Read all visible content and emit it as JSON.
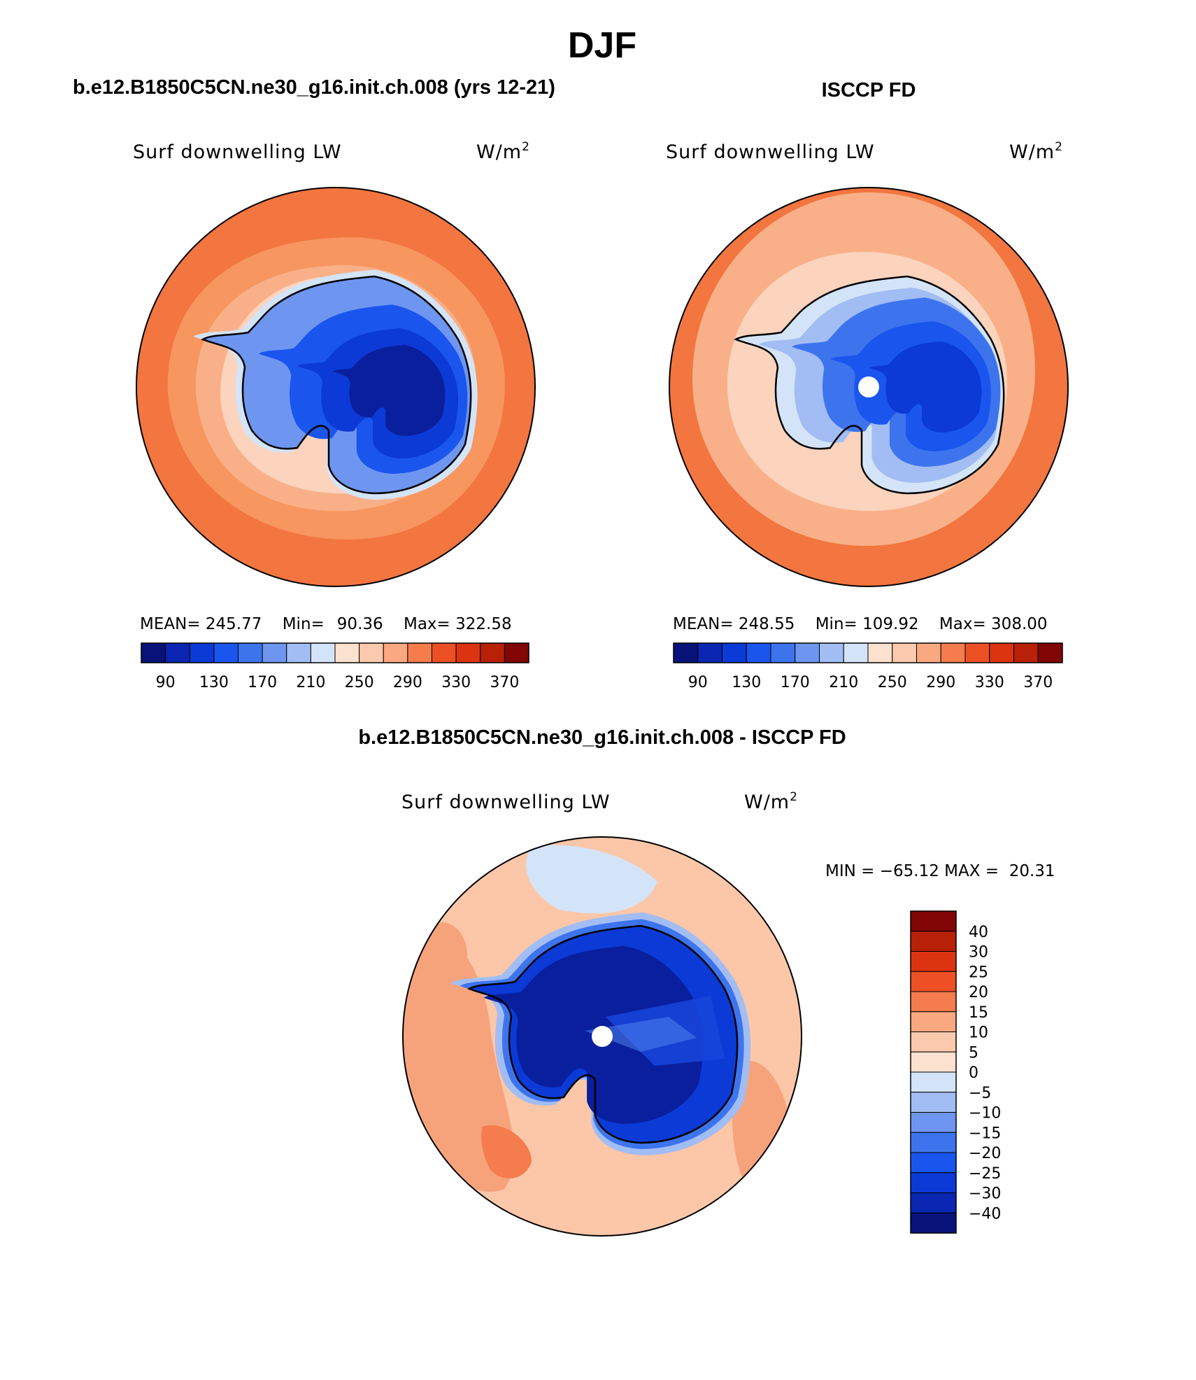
{
  "title": "DJF",
  "panels": [
    {
      "title": "b.e12.B1850C5CN.ne30_g16.init.ch.008 (yrs 12-21)",
      "field_label": "Surf downwelling LW",
      "units": "W/m",
      "units_sup": "2",
      "stats": {
        "mean_label": "MEAN=",
        "mean": "245.77",
        "min_label": "Min=",
        "min": "90.36",
        "max_label": "Max=",
        "max": "322.58"
      }
    },
    {
      "title": "ISCCP FD",
      "field_label": "Surf downwelling LW",
      "units": "W/m",
      "units_sup": "2",
      "stats": {
        "mean_label": "MEAN=",
        "mean": "248.55",
        "min_label": "Min=",
        "min": "109.92",
        "max_label": "Max=",
        "max": "308.00"
      }
    },
    {
      "title": "b.e12.B1850C5CN.ne30_g16.init.ch.008 - ISCCP FD",
      "field_label": "Surf downwelling LW",
      "units": "W/m",
      "units_sup": "2",
      "stats_text": "MIN = −65.12 MAX =  20.31"
    }
  ],
  "abs_colorbar": {
    "labels": [
      "90",
      "130",
      "170",
      "210",
      "250",
      "290",
      "330",
      "370"
    ],
    "colors": [
      "#08137a",
      "#0a26b2",
      "#0b3ad6",
      "#1a55ee",
      "#3d74ee",
      "#6e96f0",
      "#a2bdf3",
      "#d4e4f8",
      "#fce1cf",
      "#fbc9ad",
      "#f9a880",
      "#f47c4d",
      "#ec5024",
      "#dc3410",
      "#b82008",
      "#820606"
    ]
  },
  "diff_colorbar": {
    "labels": [
      "40",
      "30",
      "25",
      "20",
      "15",
      "10",
      "5",
      "0",
      "−5",
      "−10",
      "−15",
      "−20",
      "−25",
      "−30",
      "−40"
    ],
    "colors": [
      "#820606",
      "#b82008",
      "#dc3410",
      "#ec5024",
      "#f47c4d",
      "#f9a880",
      "#fbc9ad",
      "#fce1cf",
      "#d4e4f8",
      "#a2bdf3",
      "#6e96f0",
      "#3d74ee",
      "#1a55ee",
      "#0b3ad6",
      "#0a26b2",
      "#08137a"
    ]
  },
  "colors": {
    "ocean_outer": "#f3753f",
    "ocean_mid": "#f7965f",
    "ocean_light": "#f9b089",
    "ocean_pale": "#fcd3bd",
    "diff_ocean": "#fcc7a8",
    "diff_ocean_strong": "#f6a37c",
    "land_deep": "#0a1f9e",
    "land_mid": "#1746dc",
    "land_light": "#4f82ec",
    "coast": "#000000"
  }
}
